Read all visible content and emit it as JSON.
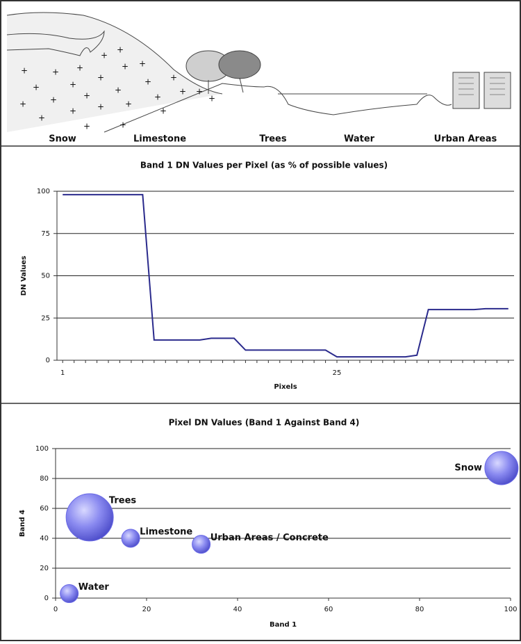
{
  "illustration": {
    "labels": [
      "Snow",
      "Limestone",
      "Trees",
      "Water",
      "Urban Areas"
    ]
  },
  "chart_data": [
    {
      "type": "line",
      "title": "Band 1 DN Values per Pixel (as % of possible values)",
      "x_label": "Pixels",
      "y_label": "DN Values",
      "x": [
        1,
        2,
        3,
        4,
        5,
        6,
        7,
        8,
        9,
        10,
        11,
        12,
        13,
        14,
        15,
        16,
        17,
        18,
        19,
        20,
        21,
        22,
        23,
        24,
        25,
        26,
        27,
        28,
        29,
        30,
        31,
        32,
        33,
        34,
        35,
        36,
        37,
        38,
        39,
        40
      ],
      "series": [
        {
          "name": "Band 1",
          "color": "#2a2a8c",
          "values": [
            98,
            98,
            98,
            98,
            98,
            98,
            98,
            98,
            12,
            12,
            12,
            12,
            12,
            13,
            13,
            13,
            6,
            6,
            6,
            6,
            6,
            6,
            6,
            6,
            2,
            2,
            2,
            2,
            2,
            2,
            2,
            3,
            30,
            30,
            30,
            30,
            30,
            30.5,
            30.5,
            30.5
          ]
        }
      ],
      "xlim": [
        0.5,
        40.5
      ],
      "xticks": [
        1,
        25
      ],
      "ylim": [
        0,
        100
      ],
      "yticks": [
        0,
        25,
        50,
        75,
        100
      ],
      "grid": true
    },
    {
      "type": "bubble",
      "title": "Pixel DN Values (Band 1 Against Band 4)",
      "x_label": "Band 1",
      "y_label": "Band 4",
      "color": "#6a6ae6",
      "labels": [
        "Snow",
        "Trees",
        "Limestone",
        "Urban Areas / Concrete",
        "Water"
      ],
      "x": [
        98,
        7.5,
        16.5,
        32,
        3
      ],
      "y": [
        87,
        54,
        40,
        36,
        3
      ],
      "sizes": [
        24,
        34,
        13,
        13,
        13
      ],
      "xlim": [
        0,
        100
      ],
      "xticks": [
        0,
        20,
        40,
        60,
        80,
        100
      ],
      "ylim": [
        0,
        100
      ],
      "yticks": [
        0,
        20,
        40,
        60,
        80,
        100
      ],
      "grid": true
    }
  ]
}
